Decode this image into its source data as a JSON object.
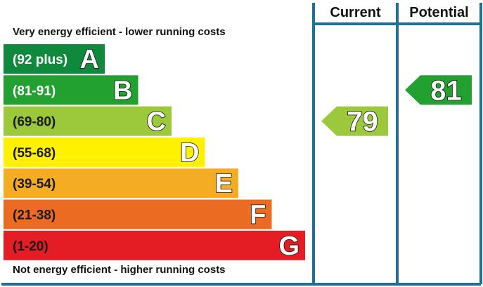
{
  "chart_data": {
    "type": "bar",
    "title": "",
    "top_note": "Very energy efficient - lower running costs",
    "bottom_note": "Not energy efficient - higher running costs",
    "columns": [
      "Current",
      "Potential"
    ],
    "bands": [
      {
        "range": "(92 plus)",
        "letter": "A",
        "color": "#0f8a3c",
        "text_color": "#ffffff"
      },
      {
        "range": "(81-91)",
        "letter": "B",
        "color": "#22a131",
        "text_color": "#ffffff"
      },
      {
        "range": "(69-80)",
        "letter": "C",
        "color": "#9cc93b",
        "text_color": "#1a1a1a"
      },
      {
        "range": "(55-68)",
        "letter": "D",
        "color": "#fff100",
        "text_color": "#1a1a1a"
      },
      {
        "range": "(39-54)",
        "letter": "E",
        "color": "#f4ac23",
        "text_color": "#1a1a1a"
      },
      {
        "range": "(21-38)",
        "letter": "F",
        "color": "#ec6b23",
        "text_color": "#1a1a1a"
      },
      {
        "range": "(1-20)",
        "letter": "G",
        "color": "#e31d23",
        "text_color": "#1a1a1a"
      }
    ],
    "ratings": {
      "current": {
        "value": 79,
        "band": "C",
        "color": "#9cc93b"
      },
      "potential": {
        "value": 81,
        "band": "B",
        "color": "#22a131"
      }
    },
    "frame_color": "#1f6f96"
  }
}
